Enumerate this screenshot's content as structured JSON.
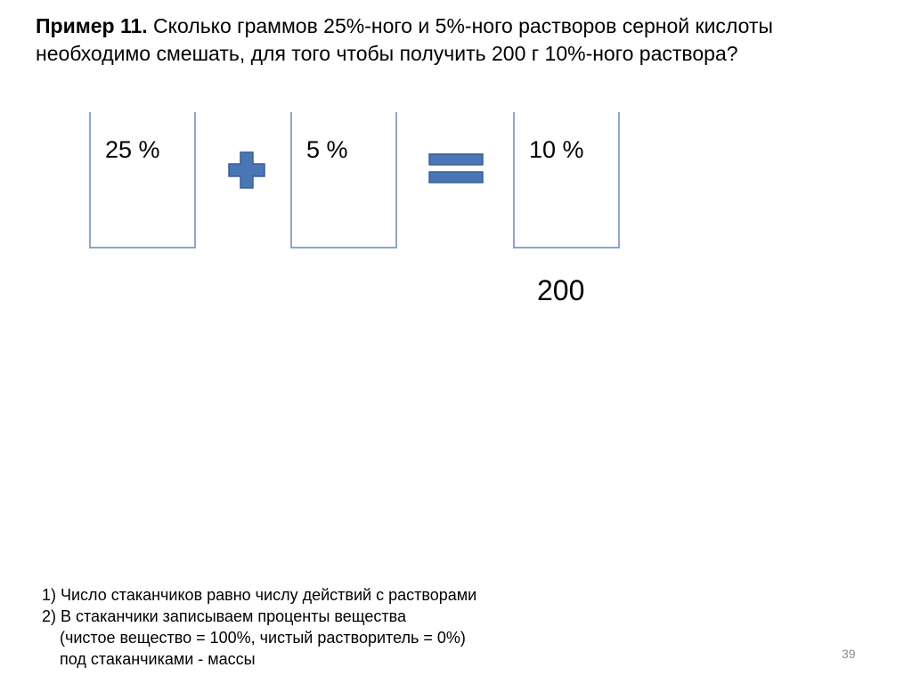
{
  "title": {
    "bold": "Пример 11.",
    "text": " Сколько граммов 25%-ного и 5%-ного растворов серной кислоты необходимо смешать, для того чтобы получить 200 г 10%-ного раствора?"
  },
  "cups": [
    {
      "label": "25 %"
    },
    {
      "label": "5 %"
    },
    {
      "label": "10 %"
    }
  ],
  "operators": {
    "plus": "plus-icon",
    "equals": "equals-icon",
    "color": "#4a76b5",
    "border": "#3a5f94"
  },
  "mass_under_result": "200",
  "notes": [
    "1) Число стаканчиков равно числу действий с растворами",
    "2) В стаканчики записываем проценты  вещества",
    "(чистое вещество = 100%, чистый растворитель = 0%)",
    "под стаканчиками - массы"
  ],
  "page_number": "39"
}
